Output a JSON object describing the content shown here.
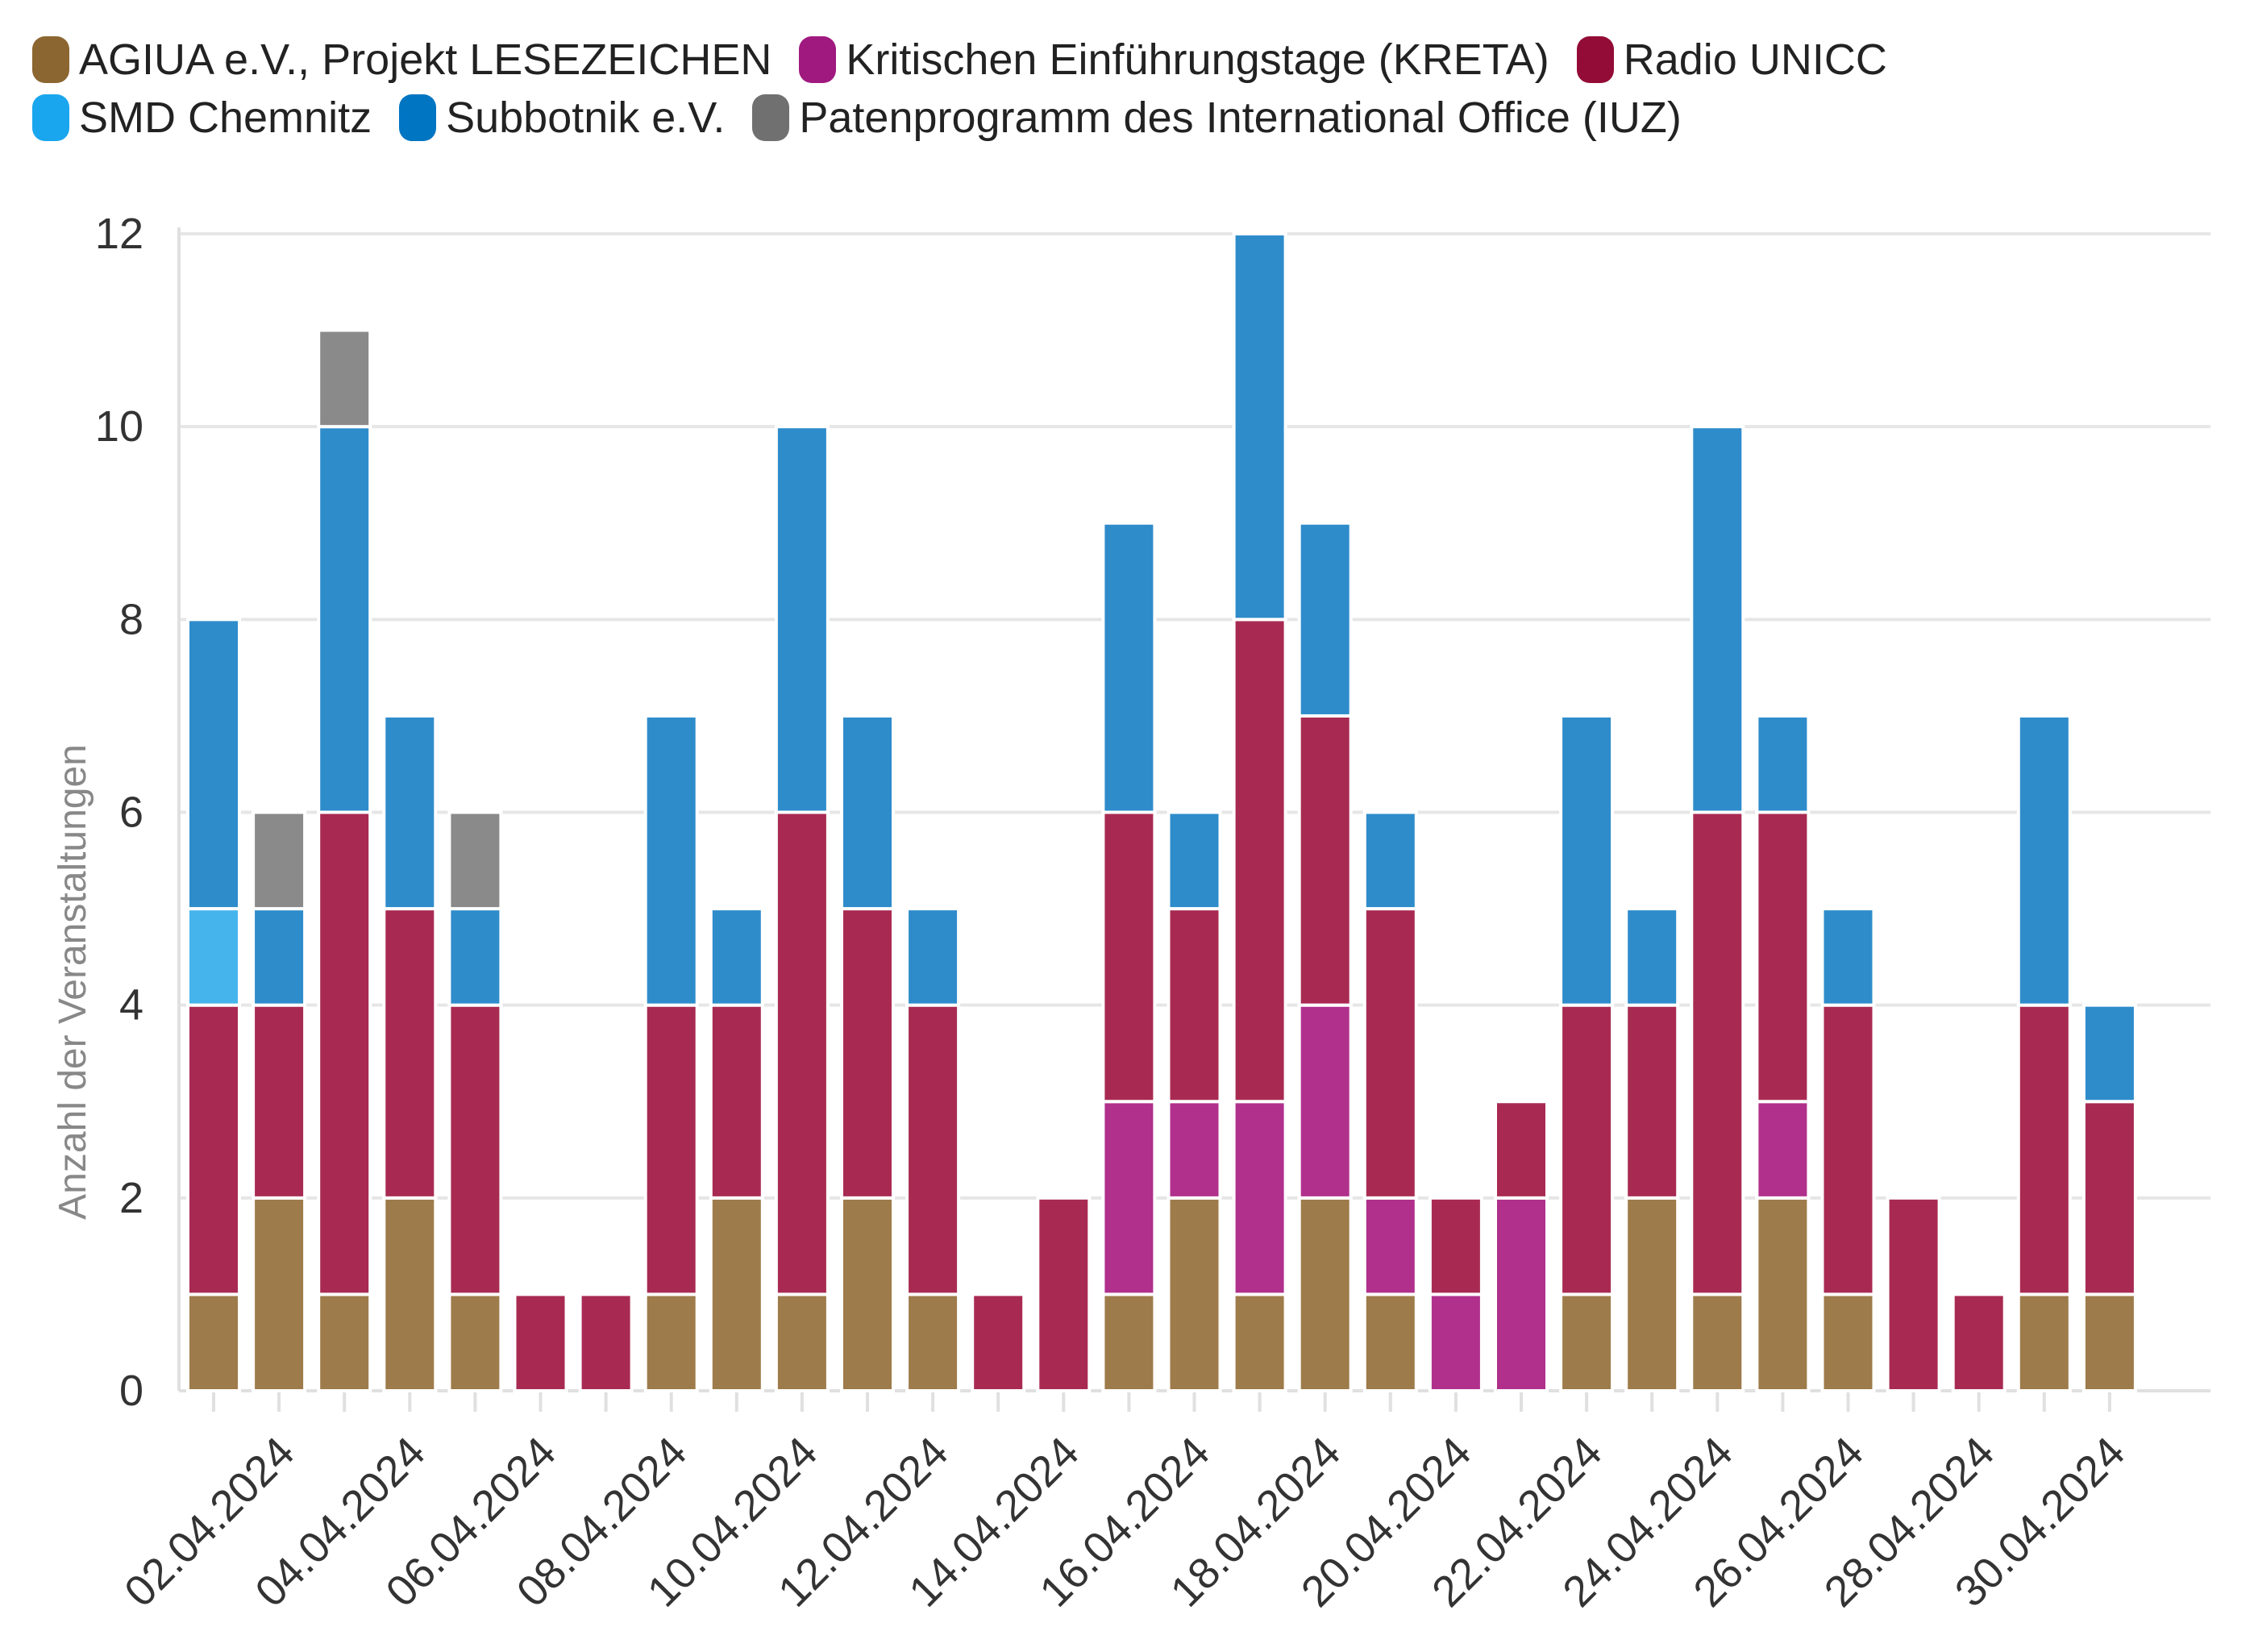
{
  "chart_data": {
    "type": "bar",
    "stacked": true,
    "ylabel": "Anzahl der Veranstaltungen",
    "xlabel": "",
    "ylim": [
      0,
      12
    ],
    "yticks": [
      0,
      2,
      4,
      6,
      8,
      10,
      12
    ],
    "grid": true,
    "legend_position": "top-left",
    "categories": [
      "01.04.2024",
      "02.04.2024",
      "03.04.2024",
      "04.04.2024",
      "05.04.2024",
      "06.04.2024",
      "07.04.2024",
      "08.04.2024",
      "09.04.2024",
      "10.04.2024",
      "11.04.2024",
      "12.04.2024",
      "13.04.2024",
      "14.04.2024",
      "15.04.2024",
      "16.04.2024",
      "17.04.2024",
      "18.04.2024",
      "19.04.2024",
      "20.04.2024",
      "21.04.2024",
      "22.04.2024",
      "23.04.2024",
      "24.04.2024",
      "25.04.2024",
      "26.04.2024",
      "27.04.2024",
      "28.04.2024",
      "29.04.2024",
      "30.04.2024"
    ],
    "x_tick_labels": [
      "02.04.2024",
      "04.04.2024",
      "06.04.2024",
      "08.04.2024",
      "10.04.2024",
      "12.04.2024",
      "14.04.2024",
      "16.04.2024",
      "18.04.2024",
      "20.04.2024",
      "22.04.2024",
      "24.04.2024",
      "26.04.2024",
      "28.04.2024",
      "30.04.2024"
    ],
    "series": [
      {
        "name": "AGIUA e.V., Projekt LESEZEICHEN",
        "color": "#9e7b4a",
        "values": [
          1,
          2,
          1,
          2,
          1,
          0,
          0,
          1,
          2,
          1,
          2,
          1,
          0,
          0,
          1,
          2,
          1,
          2,
          1,
          0,
          0,
          1,
          2,
          1,
          2,
          1,
          0,
          0,
          1,
          1
        ]
      },
      {
        "name": "Kritischen Einführungstage (KRETA)",
        "color": "#b0308c",
        "values": [
          0,
          0,
          0,
          0,
          0,
          0,
          0,
          0,
          0,
          0,
          0,
          0,
          0,
          0,
          2,
          1,
          2,
          2,
          1,
          1,
          2,
          0,
          0,
          0,
          1,
          0,
          0,
          0,
          0,
          0
        ]
      },
      {
        "name": "Radio UNICC",
        "color": "#a82a52",
        "values": [
          3,
          2,
          5,
          3,
          3,
          1,
          1,
          3,
          2,
          5,
          3,
          3,
          1,
          2,
          3,
          2,
          5,
          3,
          3,
          1,
          1,
          3,
          2,
          5,
          3,
          3,
          2,
          1,
          3,
          2
        ]
      },
      {
        "name": "SMD Chemnitz",
        "color": "#45b4ec",
        "values": [
          1,
          0,
          0,
          0,
          0,
          0,
          0,
          0,
          0,
          0,
          0,
          0,
          0,
          0,
          0,
          0,
          0,
          0,
          0,
          0,
          0,
          0,
          0,
          0,
          0,
          0,
          0,
          0,
          0,
          0
        ]
      },
      {
        "name": "Subbotnik e.V.",
        "color": "#2e8ccb",
        "values": [
          3,
          1,
          4,
          2,
          1,
          0,
          0,
          3,
          1,
          4,
          2,
          1,
          0,
          0,
          3,
          1,
          4,
          2,
          1,
          0,
          0,
          3,
          1,
          4,
          1,
          1,
          0,
          0,
          3,
          1
        ]
      },
      {
        "name": "Patenprogramm des International Office (IUZ)",
        "color": "#8a8a8a",
        "values": [
          0,
          1,
          1,
          0,
          1,
          0,
          0,
          0,
          0,
          0,
          0,
          0,
          0,
          0,
          0,
          0,
          0,
          0,
          0,
          0,
          0,
          0,
          0,
          0,
          0,
          0,
          0,
          0,
          0,
          0
        ]
      }
    ]
  },
  "legend": {
    "swatch_colors": [
      "#8c6630",
      "#a0197f",
      "#930c37",
      "#1aa6ee",
      "#0075c2",
      "#707070"
    ]
  }
}
